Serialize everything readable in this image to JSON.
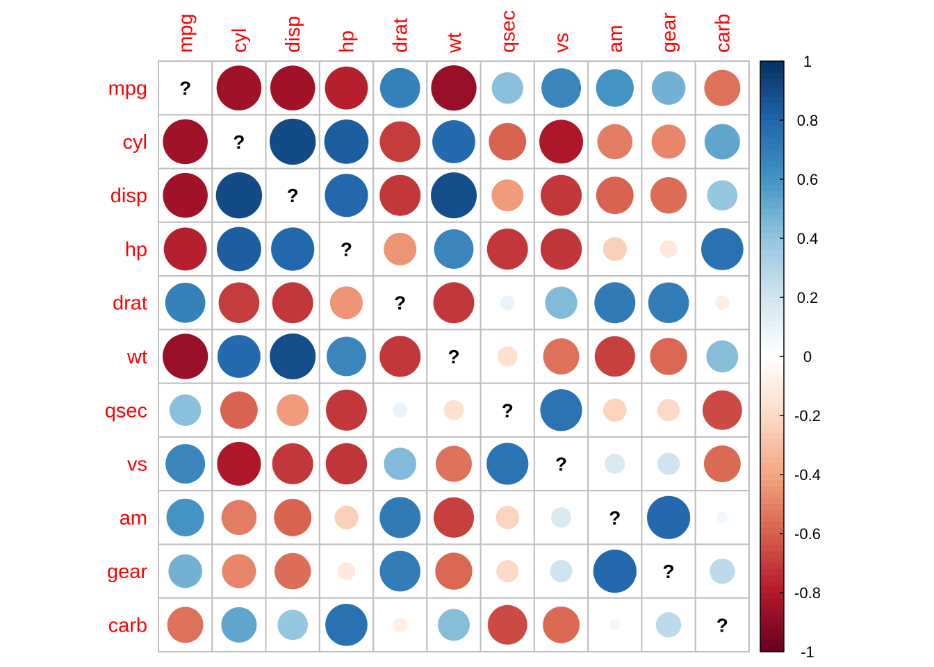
{
  "chart_data": {
    "type": "heatmap",
    "title": "",
    "variables": [
      "mpg",
      "cyl",
      "disp",
      "hp",
      "drat",
      "wt",
      "qsec",
      "vs",
      "am",
      "gear",
      "carb"
    ],
    "diagonal_label": "?",
    "matrix": [
      [
        null,
        -0.85,
        -0.85,
        -0.78,
        0.68,
        -0.87,
        0.42,
        0.66,
        0.6,
        0.48,
        -0.55
      ],
      [
        -0.85,
        null,
        0.9,
        0.83,
        -0.7,
        0.78,
        -0.59,
        -0.81,
        -0.52,
        -0.49,
        0.53
      ],
      [
        -0.85,
        0.9,
        null,
        0.79,
        -0.71,
        0.89,
        -0.43,
        -0.71,
        -0.59,
        -0.56,
        0.39
      ],
      [
        -0.78,
        0.83,
        0.79,
        null,
        -0.45,
        0.66,
        -0.71,
        -0.72,
        -0.24,
        -0.13,
        0.75
      ],
      [
        0.68,
        -0.7,
        -0.71,
        -0.45,
        null,
        -0.71,
        0.09,
        0.44,
        0.71,
        0.7,
        -0.09
      ],
      [
        -0.87,
        0.78,
        0.89,
        0.66,
        -0.71,
        null,
        -0.17,
        -0.55,
        -0.69,
        -0.58,
        0.43
      ],
      [
        0.42,
        -0.59,
        -0.43,
        -0.71,
        0.09,
        -0.17,
        null,
        0.74,
        -0.23,
        -0.21,
        -0.66
      ],
      [
        0.66,
        -0.81,
        -0.71,
        -0.72,
        0.44,
        -0.55,
        0.74,
        null,
        0.17,
        0.21,
        -0.57
      ],
      [
        0.6,
        -0.52,
        -0.59,
        -0.24,
        0.71,
        -0.69,
        -0.23,
        0.17,
        null,
        0.79,
        0.06
      ],
      [
        0.48,
        -0.49,
        -0.56,
        -0.13,
        0.7,
        -0.58,
        -0.21,
        0.21,
        0.79,
        null,
        0.27
      ],
      [
        -0.55,
        0.53,
        0.39,
        0.75,
        -0.09,
        0.43,
        -0.66,
        -0.57,
        0.06,
        0.27,
        null
      ]
    ],
    "colorbar": {
      "range": [
        -1,
        1
      ],
      "ticks": [
        "1",
        "0.8",
        "0.6",
        "0.4",
        "0.2",
        "0",
        "-0.2",
        "-0.4",
        "-0.6",
        "-0.8",
        "-1"
      ],
      "palette": [
        "#67001F",
        "#B2182B",
        "#D6604D",
        "#F4A582",
        "#FDDBC7",
        "#FFFFFF",
        "#D1E5F0",
        "#92C5DE",
        "#4393C3",
        "#2166AC",
        "#053061"
      ]
    },
    "label_color": "#FF0000",
    "grid": true,
    "legend": "right"
  }
}
